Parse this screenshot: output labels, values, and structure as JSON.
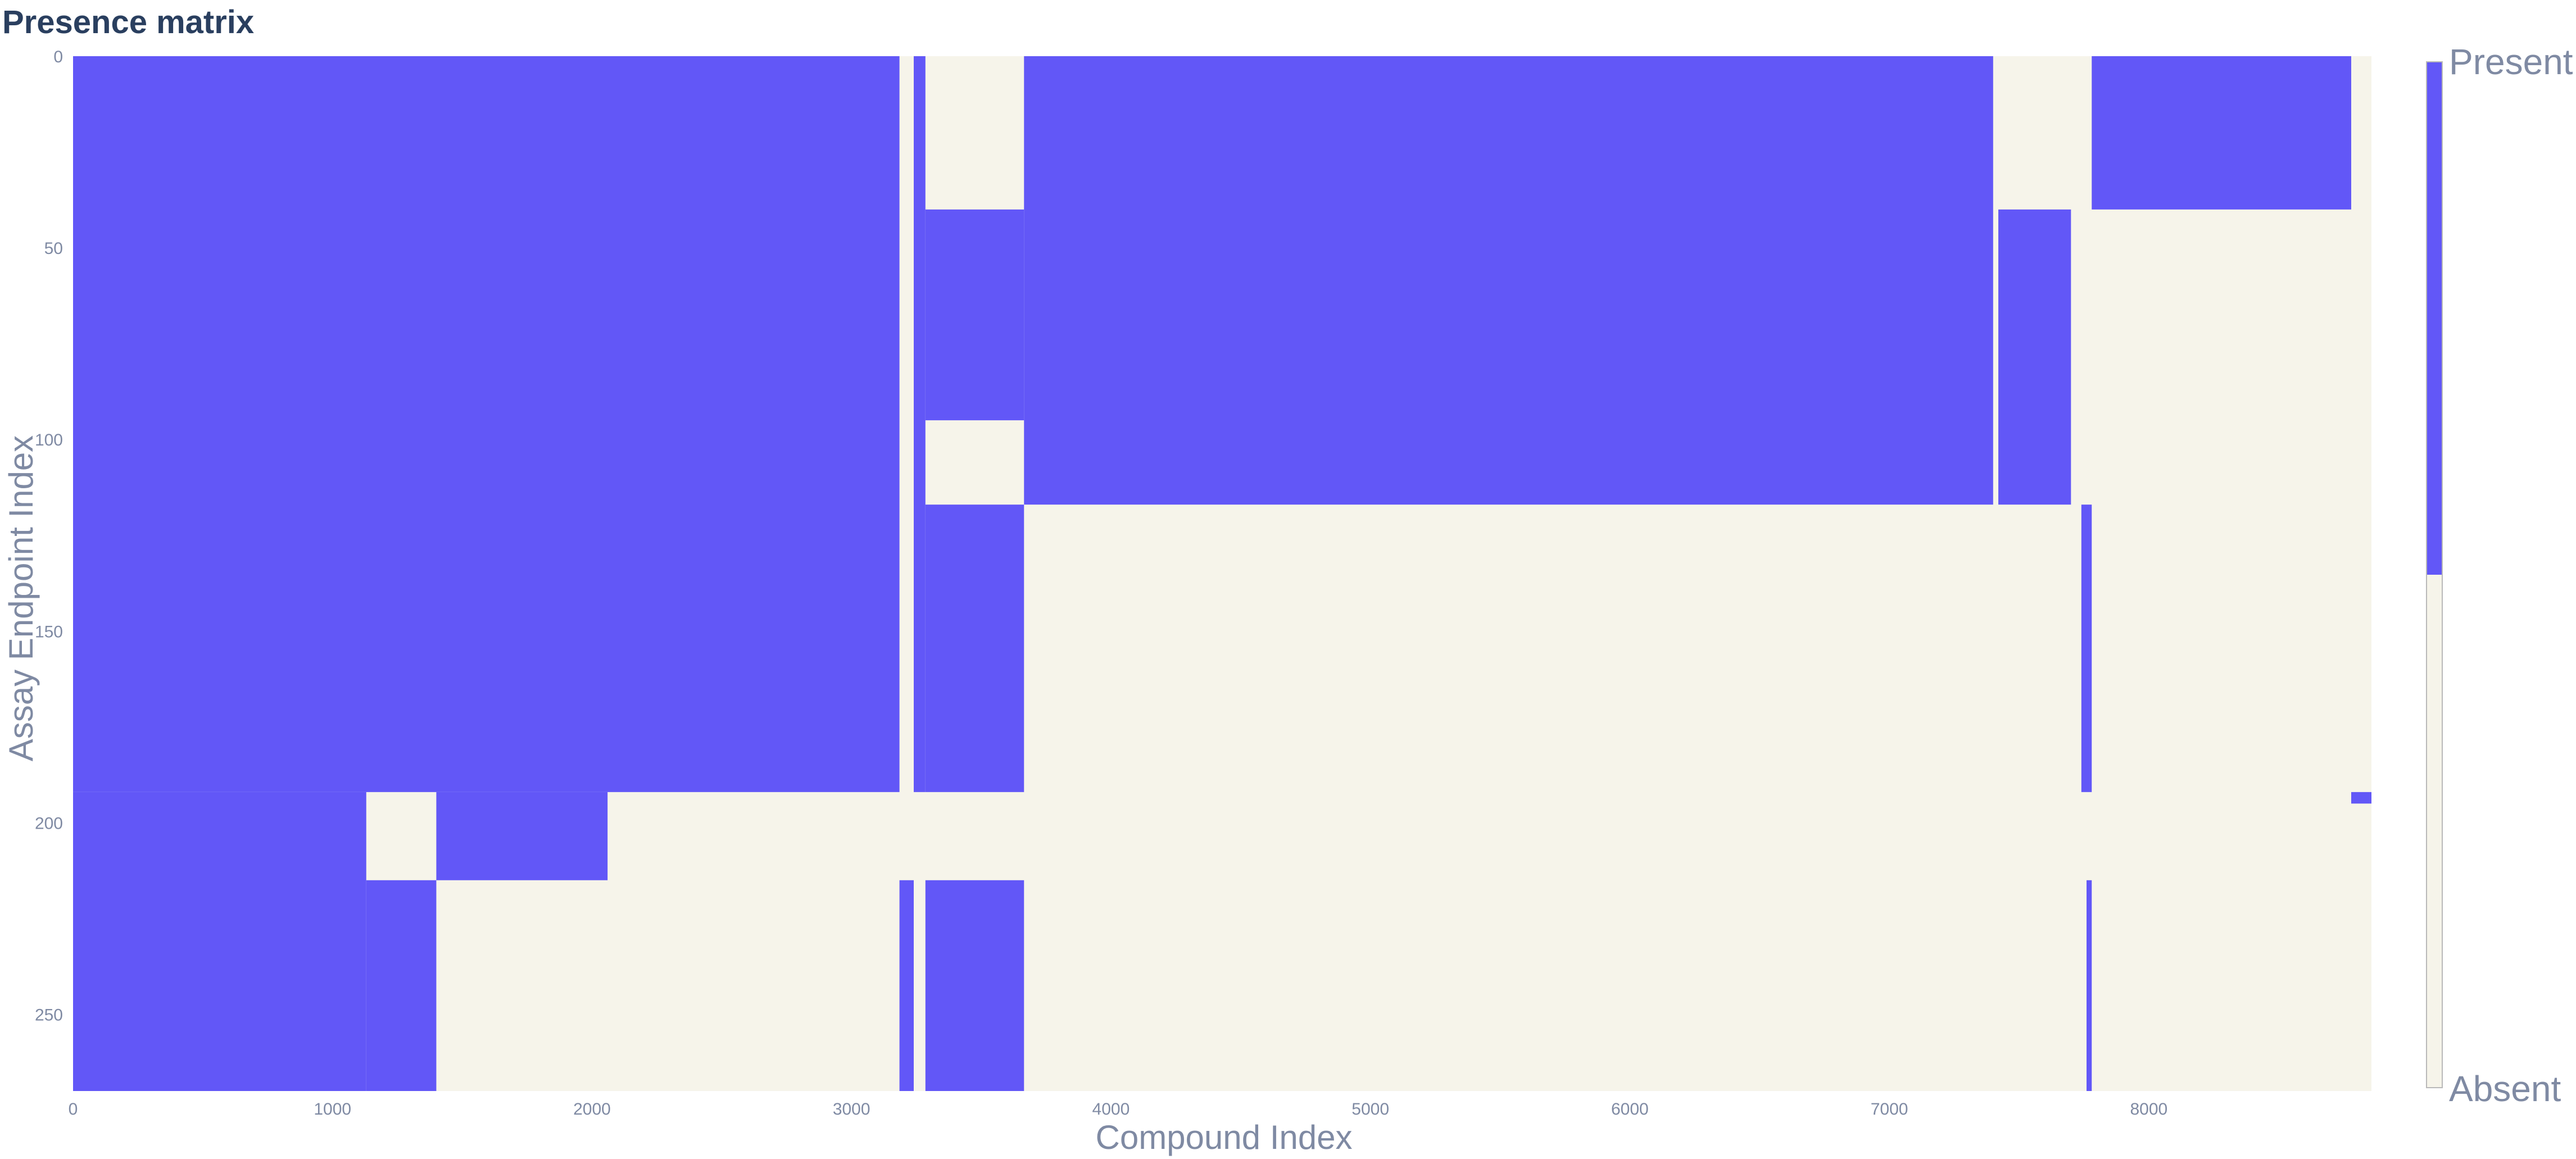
{
  "chart_data": {
    "type": "heatmap",
    "title": "Presence matrix",
    "xlabel": "Compound Index",
    "ylabel": "Assay Endpoint Index",
    "xlim": [
      0,
      8858
    ],
    "ylim": [
      0,
      270
    ],
    "y_reversed": true,
    "x_ticks": [
      0,
      1000,
      2000,
      3000,
      4000,
      5000,
      6000,
      7000,
      8000
    ],
    "y_ticks": [
      0,
      50,
      100,
      150,
      200,
      250
    ],
    "colorscale": [
      {
        "label": "Absent",
        "value": 0,
        "color": "#f6f4ea"
      },
      {
        "label": "Present",
        "value": 1,
        "color": "#6257f7"
      }
    ],
    "legend_position": "right",
    "grid": false,
    "present_regions": [
      {
        "x": [
          0,
          3185
        ],
        "y": [
          0,
          192
        ]
      },
      {
        "x": [
          3240,
          3285
        ],
        "y": [
          0,
          192
        ]
      },
      {
        "x": [
          3285,
          3665
        ],
        "y": [
          40,
          95
        ]
      },
      {
        "x": [
          3285,
          3665
        ],
        "y": [
          117,
          192
        ]
      },
      {
        "x": [
          3665,
          7400
        ],
        "y": [
          0,
          117
        ]
      },
      {
        "x": [
          7420,
          7700
        ],
        "y": [
          40,
          117
        ]
      },
      {
        "x": [
          7740,
          7780
        ],
        "y": [
          117,
          192
        ]
      },
      {
        "x": [
          7780,
          8780
        ],
        "y": [
          0,
          40
        ]
      },
      {
        "x": [
          8780,
          8858
        ],
        "y": [
          192,
          195
        ]
      },
      {
        "x": [
          0,
          1130
        ],
        "y": [
          192,
          270
        ]
      },
      {
        "x": [
          1130,
          1400
        ],
        "y": [
          215,
          270
        ]
      },
      {
        "x": [
          1400,
          2060
        ],
        "y": [
          192,
          215
        ]
      },
      {
        "x": [
          3185,
          3240
        ],
        "y": [
          215,
          270
        ]
      },
      {
        "x": [
          3285,
          3665
        ],
        "y": [
          215,
          270
        ]
      },
      {
        "x": [
          7760,
          7780
        ],
        "y": [
          215,
          270
        ]
      }
    ]
  }
}
